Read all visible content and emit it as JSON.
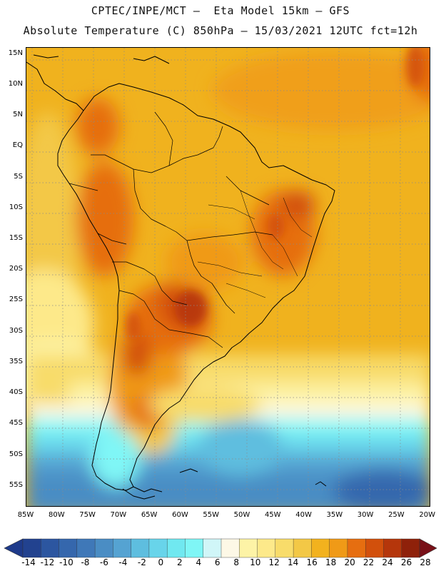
{
  "header": {
    "line1": "CPTEC/INPE/MCT —  Eta Model 15km — GFS",
    "line2": "Absolute Temperature (C) 850hPa — 15/03/2021 12UTC fct=12h"
  },
  "map": {
    "lat_labels": [
      "15N",
      "10N",
      "5N",
      "EQ",
      "5S",
      "10S",
      "15S",
      "20S",
      "25S",
      "30S",
      "35S",
      "40S",
      "45S",
      "50S",
      "55S"
    ],
    "lat_values": [
      15,
      10,
      5,
      0,
      -5,
      -10,
      -15,
      -20,
      -25,
      -30,
      -35,
      -40,
      -45,
      -50,
      -55
    ],
    "lon_labels": [
      "85W",
      "80W",
      "75W",
      "70W",
      "65W",
      "60W",
      "55W",
      "50W",
      "45W",
      "40W",
      "35W",
      "30W",
      "25W",
      "20W"
    ],
    "lon_values": [
      -85,
      -80,
      -75,
      -70,
      -65,
      -60,
      -55,
      -50,
      -45,
      -40,
      -35,
      -30,
      -25,
      -20
    ],
    "extent": {
      "lon_min": -85,
      "lon_max": -19.5,
      "lat_min": -58.5,
      "lat_max": 16
    },
    "features": [
      "temperature-field",
      "coastlines",
      "country-borders",
      "state-borders",
      "graticule"
    ]
  },
  "colorbar": {
    "labels": [
      "-14",
      "-12",
      "-10",
      "-8",
      "-6",
      "-4",
      "-2",
      "0",
      "2",
      "4",
      "6",
      "8",
      "10",
      "12",
      "14",
      "16",
      "18",
      "20",
      "22",
      "24",
      "26",
      "28"
    ],
    "colors": [
      "#22428f",
      "#2c56a0",
      "#3567ad",
      "#3f78b8",
      "#4a8dc4",
      "#55a3d2",
      "#5ebedf",
      "#68d4ea",
      "#70e8f0",
      "#7ff6f6",
      "#d0f6f8",
      "#fdf8e6",
      "#fdf3a6",
      "#fde98a",
      "#f8dc6a",
      "#f3c846",
      "#f2b21e",
      "#f09a17",
      "#e66e10",
      "#d2500c",
      "#b5360b",
      "#8f210a"
    ],
    "under_color": "#1e3a8a",
    "over_color": "#781018"
  }
}
